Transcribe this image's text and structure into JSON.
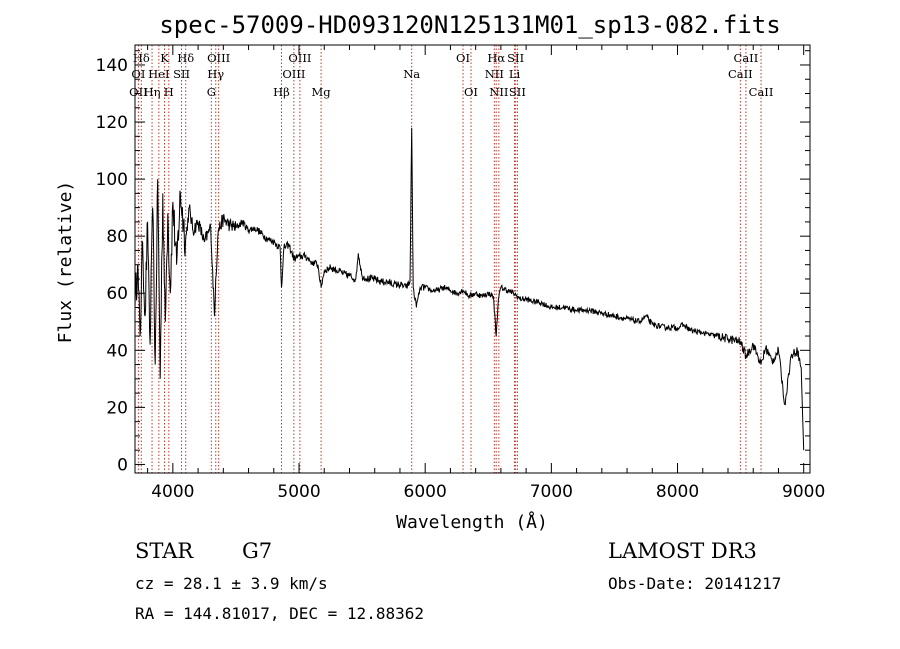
{
  "chart_data": {
    "type": "line",
    "title": "spec-57009-HD093120N125131M01_sp13-082.fits",
    "xlabel": "Wavelength (Å)",
    "ylabel": "Flux (relative)",
    "xlim": [
      3700,
      9050
    ],
    "ylim": [
      -3,
      147
    ],
    "xticks": [
      4000,
      5000,
      6000,
      7000,
      8000,
      9000
    ],
    "yticks": [
      0,
      20,
      40,
      60,
      80,
      100,
      120,
      140
    ],
    "line_color": "#000000",
    "marker_color": "#c0392b",
    "series": [
      {
        "name": "spectrum",
        "x": [
          3700,
          3720,
          3740,
          3760,
          3780,
          3800,
          3820,
          3840,
          3860,
          3880,
          3900,
          3920,
          3940,
          3960,
          3980,
          4000,
          4030,
          4060,
          4100,
          4130,
          4160,
          4200,
          4250,
          4300,
          4330,
          4340,
          4360,
          4400,
          4450,
          4500,
          4550,
          4600,
          4650,
          4700,
          4750,
          4800,
          4850,
          4861,
          4880,
          4920,
          4960,
          5000,
          5050,
          5100,
          5150,
          5175,
          5200,
          5250,
          5300,
          5350,
          5400,
          5450,
          5470,
          5500,
          5550,
          5600,
          5650,
          5700,
          5750,
          5800,
          5850,
          5880,
          5893,
          5905,
          5930,
          5960,
          6000,
          6050,
          6100,
          6150,
          6200,
          6250,
          6300,
          6350,
          6400,
          6450,
          6500,
          6540,
          6563,
          6580,
          6600,
          6650,
          6700,
          6750,
          6800,
          6850,
          6900,
          6950,
          7000,
          7100,
          7200,
          7300,
          7400,
          7500,
          7600,
          7700,
          7750,
          7800,
          7900,
          8000,
          8050,
          8100,
          8200,
          8300,
          8400,
          8500,
          8542,
          8600,
          8662,
          8700,
          8750,
          8800,
          8850,
          8900,
          8950,
          8980,
          9000
        ],
        "y": [
          55,
          70,
          45,
          78,
          52,
          85,
          42,
          90,
          35,
          100,
          30,
          95,
          50,
          88,
          60,
          92,
          70,
          95,
          78,
          90,
          82,
          85,
          78,
          83,
          52,
          65,
          82,
          86,
          84,
          83,
          85,
          82,
          83,
          81,
          79,
          78,
          76,
          62,
          76,
          77,
          72,
          73,
          73,
          71,
          70,
          62,
          68,
          69,
          68,
          67,
          66,
          65,
          74,
          66,
          65,
          65,
          64,
          64,
          63,
          63,
          62,
          64,
          118,
          62,
          55,
          62,
          62,
          61,
          61,
          62,
          61,
          60,
          61,
          59,
          60,
          59,
          60,
          59,
          45,
          58,
          62,
          61,
          60,
          58,
          58,
          57,
          57,
          56,
          55,
          55,
          54,
          54,
          53,
          52,
          51,
          50,
          52,
          49,
          48,
          48,
          49,
          47,
          46,
          45,
          44,
          43,
          38,
          42,
          35,
          41,
          36,
          40,
          21,
          38,
          40,
          34,
          5
        ]
      }
    ],
    "annotations": [
      {
        "label": "Hδ",
        "x": 3750,
        "row": 1
      },
      {
        "label": "K",
        "x": 3934,
        "row": 1
      },
      {
        "label": "Hδ",
        "x": 4102,
        "row": 1
      },
      {
        "label": "OIII",
        "x": 4363,
        "row": 1
      },
      {
        "label": "OIII",
        "x": 5007,
        "row": 1
      },
      {
        "label": "OI",
        "x": 6300,
        "row": 1
      },
      {
        "label": "Hα",
        "x": 6563,
        "row": 1
      },
      {
        "label": "SII",
        "x": 6717,
        "row": 1
      },
      {
        "label": "CaII",
        "x": 8542,
        "row": 1
      },
      {
        "label": "OI",
        "x": 3727,
        "row": 2
      },
      {
        "label": "HeI",
        "x": 3889,
        "row": 2
      },
      {
        "label": "SII",
        "x": 4069,
        "row": 2
      },
      {
        "label": "Hγ",
        "x": 4340,
        "row": 2
      },
      {
        "label": "OIII",
        "x": 4959,
        "row": 2
      },
      {
        "label": "Na",
        "x": 5893,
        "row": 2
      },
      {
        "label": "NII",
        "x": 6548,
        "row": 2
      },
      {
        "label": "Li",
        "x": 6708,
        "row": 2
      },
      {
        "label": "CaII",
        "x": 8498,
        "row": 2
      },
      {
        "label": "OII",
        "x": 3727,
        "row": 3
      },
      {
        "label": "Hη",
        "x": 3835,
        "row": 3
      },
      {
        "label": "H",
        "x": 3968,
        "row": 3
      },
      {
        "label": "G",
        "x": 4305,
        "row": 3
      },
      {
        "label": "Hβ",
        "x": 4861,
        "row": 3
      },
      {
        "label": "Mg",
        "x": 5175,
        "row": 3
      },
      {
        "label": "OI",
        "x": 6363,
        "row": 3
      },
      {
        "label": "NII",
        "x": 6584,
        "row": 3
      },
      {
        "label": "SII",
        "x": 6731,
        "row": 3
      },
      {
        "label": "CaII",
        "x": 8662,
        "row": 3
      }
    ],
    "marker_lines": [
      3727,
      3750,
      3835,
      3889,
      3934,
      3968,
      4069,
      4102,
      4305,
      4340,
      4363,
      4861,
      4959,
      5007,
      5175,
      5893,
      6300,
      6363,
      6548,
      6563,
      6584,
      6708,
      6717,
      6731,
      8498,
      8542,
      8662
    ]
  },
  "info": {
    "object_class": "STAR",
    "subclass": "G7",
    "survey": "LAMOST DR3",
    "cz": "cz = 28.1 ± 3.9 km/s",
    "obs_date": "Obs-Date: 20141217",
    "coords": "RA = 144.81017, DEC =  12.88362"
  }
}
